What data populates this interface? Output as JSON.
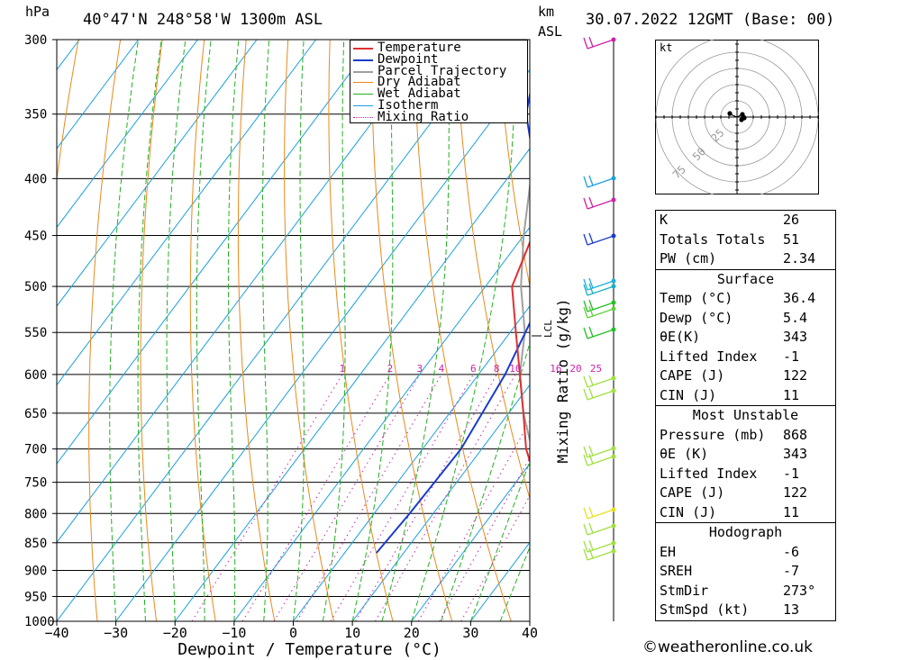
{
  "header": {
    "hpa": "hPa",
    "location": "40°47'N 248°58'W 1300m ASL",
    "km": "km",
    "asl": "ASL",
    "datetime": "30.07.2022 12GMT (Base: 00)"
  },
  "axes": {
    "xlabel": "Dewpoint / Temperature (°C)",
    "right_label": "Mixing Ratio (g/kg)",
    "lcl_label": "LCL"
  },
  "footer": "©weatheronline.co.uk",
  "colors": {
    "temperature": "#e03030",
    "dewpoint": "#1a3ccc",
    "parcel": "#a0a0a0",
    "dry_adiabat": "#e8891c",
    "wet_adiabat": "#22b022",
    "isotherm": "#1aa0e0",
    "mixing_ratio": "#cc22aa"
  },
  "chart_data": {
    "type": "skew-t",
    "x_ticks": [
      -40,
      -30,
      -20,
      -10,
      0,
      10,
      20,
      30,
      40
    ],
    "xlim": [
      -40,
      40
    ],
    "pressure_ticks": [
      300,
      350,
      400,
      450,
      500,
      550,
      600,
      650,
      700,
      750,
      800,
      850,
      900,
      950,
      1000
    ],
    "ylim": [
      1000,
      300
    ],
    "legend": [
      "Temperature",
      "Dewpoint",
      "Parcel Trajectory",
      "Dry Adiabat",
      "Wet Adiabat",
      "Isotherm",
      "Mixing Ratio"
    ],
    "legend_position": "top-right",
    "mixing_ratio_labels": [
      "1",
      "2",
      "3",
      "4",
      "6",
      "8",
      "10",
      "16",
      "20",
      "25"
    ],
    "temperature": [
      [
        868,
        36.4
      ],
      [
        850,
        33.5
      ],
      [
        800,
        28.8
      ],
      [
        750,
        23.5
      ],
      [
        700,
        17.5
      ],
      [
        650,
        12.5
      ],
      [
        600,
        7.0
      ],
      [
        550,
        1.0
      ],
      [
        500,
        -5.5
      ],
      [
        450,
        -8.5
      ],
      [
        400,
        -12.0
      ],
      [
        370,
        -15.5
      ],
      [
        350,
        -19.0
      ],
      [
        300,
        -26.0
      ]
    ],
    "dewpoint": [
      [
        868,
        5.4
      ],
      [
        800,
        6.0
      ],
      [
        700,
        6.5
      ],
      [
        600,
        4.5
      ],
      [
        500,
        0.5
      ],
      [
        480,
        -1.5
      ],
      [
        450,
        -6.5
      ],
      [
        400,
        -15.0
      ],
      [
        350,
        -25.0
      ],
      [
        300,
        -32.0
      ]
    ],
    "parcel": [
      [
        868,
        36.4
      ],
      [
        800,
        29.5
      ],
      [
        750,
        24.5
      ],
      [
        700,
        18.5
      ],
      [
        650,
        12.5
      ],
      [
        600,
        7.0
      ],
      [
        550,
        2.5
      ],
      [
        500,
        -4.0
      ],
      [
        450,
        -10.0
      ],
      [
        400,
        -16.0
      ],
      [
        370,
        -19.0
      ]
    ],
    "hodograph_rings": [
      "25",
      "50",
      "75"
    ],
    "hodograph_unit": "kt"
  },
  "table": {
    "k_label": "K",
    "k": "26",
    "tt_label": "Totals Totals",
    "tt": "51",
    "pw_label": "PW (cm)",
    "pw": "2.34",
    "surface_title": "Surface",
    "s_temp_label": "Temp (°C)",
    "s_temp": "36.4",
    "s_dewp_label": "Dewp (°C)",
    "s_dewp": "5.4",
    "s_theta_label": "θE(K)",
    "s_theta": "343",
    "s_li_label": "Lifted Index",
    "s_li": "-1",
    "s_cape_label": "CAPE (J)",
    "s_cape": "122",
    "s_cin_label": "CIN (J)",
    "s_cin": "11",
    "mu_title": "Most Unstable",
    "mu_p_label": "Pressure (mb)",
    "mu_p": "868",
    "mu_theta_label": "θE (K)",
    "mu_theta": "343",
    "mu_li_label": "Lifted Index",
    "mu_li": "-1",
    "mu_cape_label": "CAPE (J)",
    "mu_cape": "122",
    "mu_cin_label": "CIN (J)",
    "mu_cin": "11",
    "hodo_title": "Hodograph",
    "eh_label": "EH",
    "eh": "-6",
    "sreh_label": "SREH",
    "sreh": "-7",
    "stmdir_label": "StmDir",
    "stmdir": "273°",
    "stmspd_label": "StmSpd (kt)",
    "stmspd": "13"
  }
}
